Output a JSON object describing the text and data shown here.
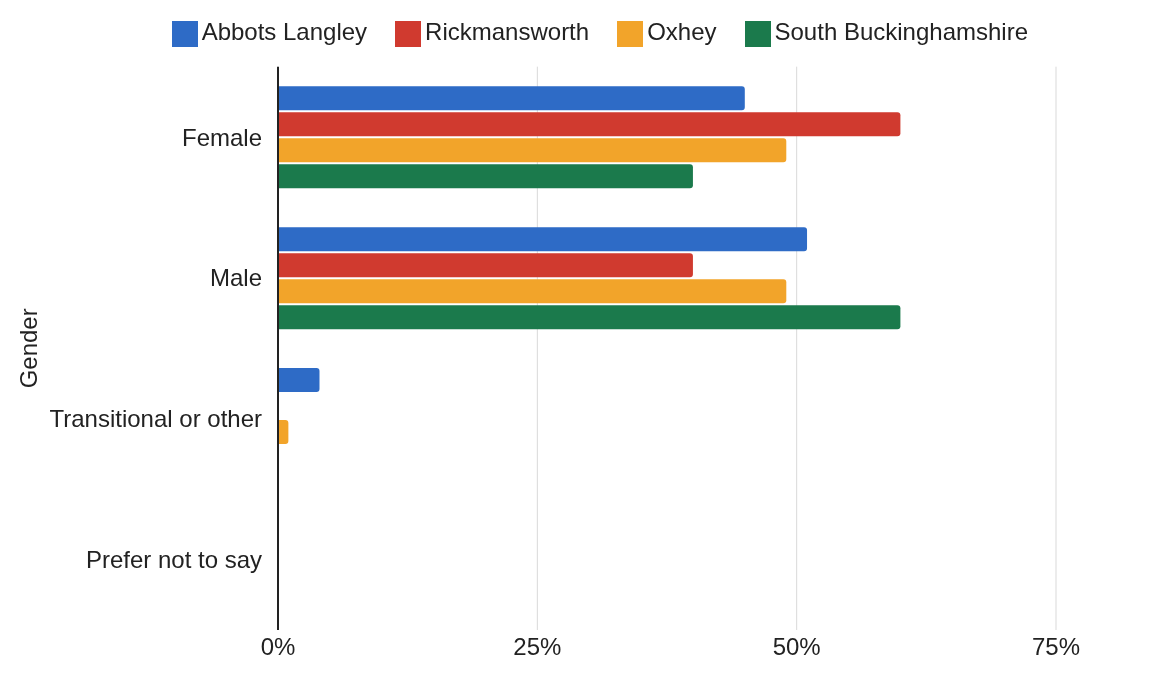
{
  "chart_data": {
    "type": "bar",
    "orientation": "horizontal",
    "ylabel": "Gender",
    "categories": [
      "Female",
      "Male",
      "Transitional or other",
      "Prefer not to say"
    ],
    "series": [
      {
        "name": "Abbots Langley",
        "color": "#2e6bc6",
        "values": [
          45,
          51,
          4,
          0
        ]
      },
      {
        "name": "Rickmansworth",
        "color": "#d03a2f",
        "values": [
          60,
          40,
          0,
          0
        ]
      },
      {
        "name": "Oxhey",
        "color": "#f2a42a",
        "values": [
          49,
          49,
          1,
          0
        ]
      },
      {
        "name": "South Buckinghamshire",
        "color": "#1b7a4c",
        "values": [
          40,
          60,
          0,
          0
        ]
      }
    ],
    "xlim": [
      0,
      75
    ],
    "xticks": [
      {
        "value": 0,
        "label": "0%"
      },
      {
        "value": 25,
        "label": "25%"
      },
      {
        "value": 50,
        "label": "50%"
      },
      {
        "value": 75,
        "label": "75%"
      }
    ],
    "grid": "x",
    "legend": "top"
  }
}
